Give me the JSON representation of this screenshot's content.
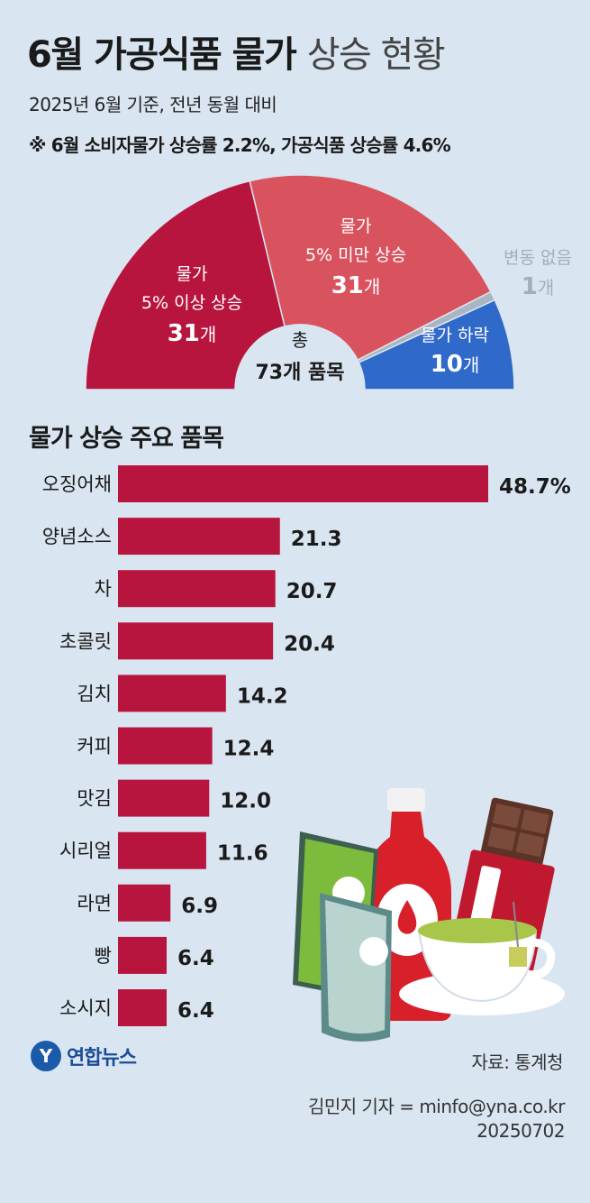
{
  "header": {
    "title_bold": "6월 가공식품 물가",
    "title_light": "상승 현황",
    "subtitle": "2025년 6월 기준, 전년 동월 대비",
    "note": "※ 6월 소비자물가 상승률 2.2%, 가공식품 상승률 4.6%"
  },
  "semi": {
    "center_line1": "총",
    "center_line2": "73개 품목",
    "segments": [
      {
        "line1": "물가",
        "line2": "5% 이상 상승",
        "count": "31",
        "unit": "개",
        "value": 31,
        "color": "#b8153e"
      },
      {
        "line1": "물가",
        "line2": "5% 미만 상승",
        "count": "31",
        "unit": "개",
        "value": 31,
        "color": "#d9535e"
      },
      {
        "line1": "변동 없음",
        "line2": "",
        "count": "1",
        "unit": "개",
        "value": 1,
        "color": "#a9b5c0"
      },
      {
        "line1": "물가 하락",
        "line2": "",
        "count": "10",
        "unit": "개",
        "value": 10,
        "color": "#2f69c9"
      }
    ]
  },
  "chart_data": {
    "type": "bar",
    "orientation": "horizontal",
    "title": "물가 상승 주요 품목",
    "categories": [
      "오징어채",
      "양념소스",
      "차",
      "초콜릿",
      "김치",
      "커피",
      "맛김",
      "시리얼",
      "라면",
      "빵",
      "소시지"
    ],
    "values": [
      48.7,
      21.3,
      20.7,
      20.4,
      14.2,
      12.4,
      12.0,
      11.6,
      6.9,
      6.4,
      6.4
    ],
    "labels": [
      "48.7%",
      "21.3",
      "20.7",
      "20.4",
      "14.2",
      "12.4",
      "12.0",
      "11.6",
      "6.9",
      "6.4",
      "6.4"
    ],
    "bar_color": "#b8153e",
    "grid": false
  },
  "footer": {
    "logo_mark": "Y",
    "logo_text": "연합뉴스",
    "source": "자료: 통계청",
    "byline": "김민지 기자 = minfo@yna.co.kr",
    "date": "20250702"
  }
}
